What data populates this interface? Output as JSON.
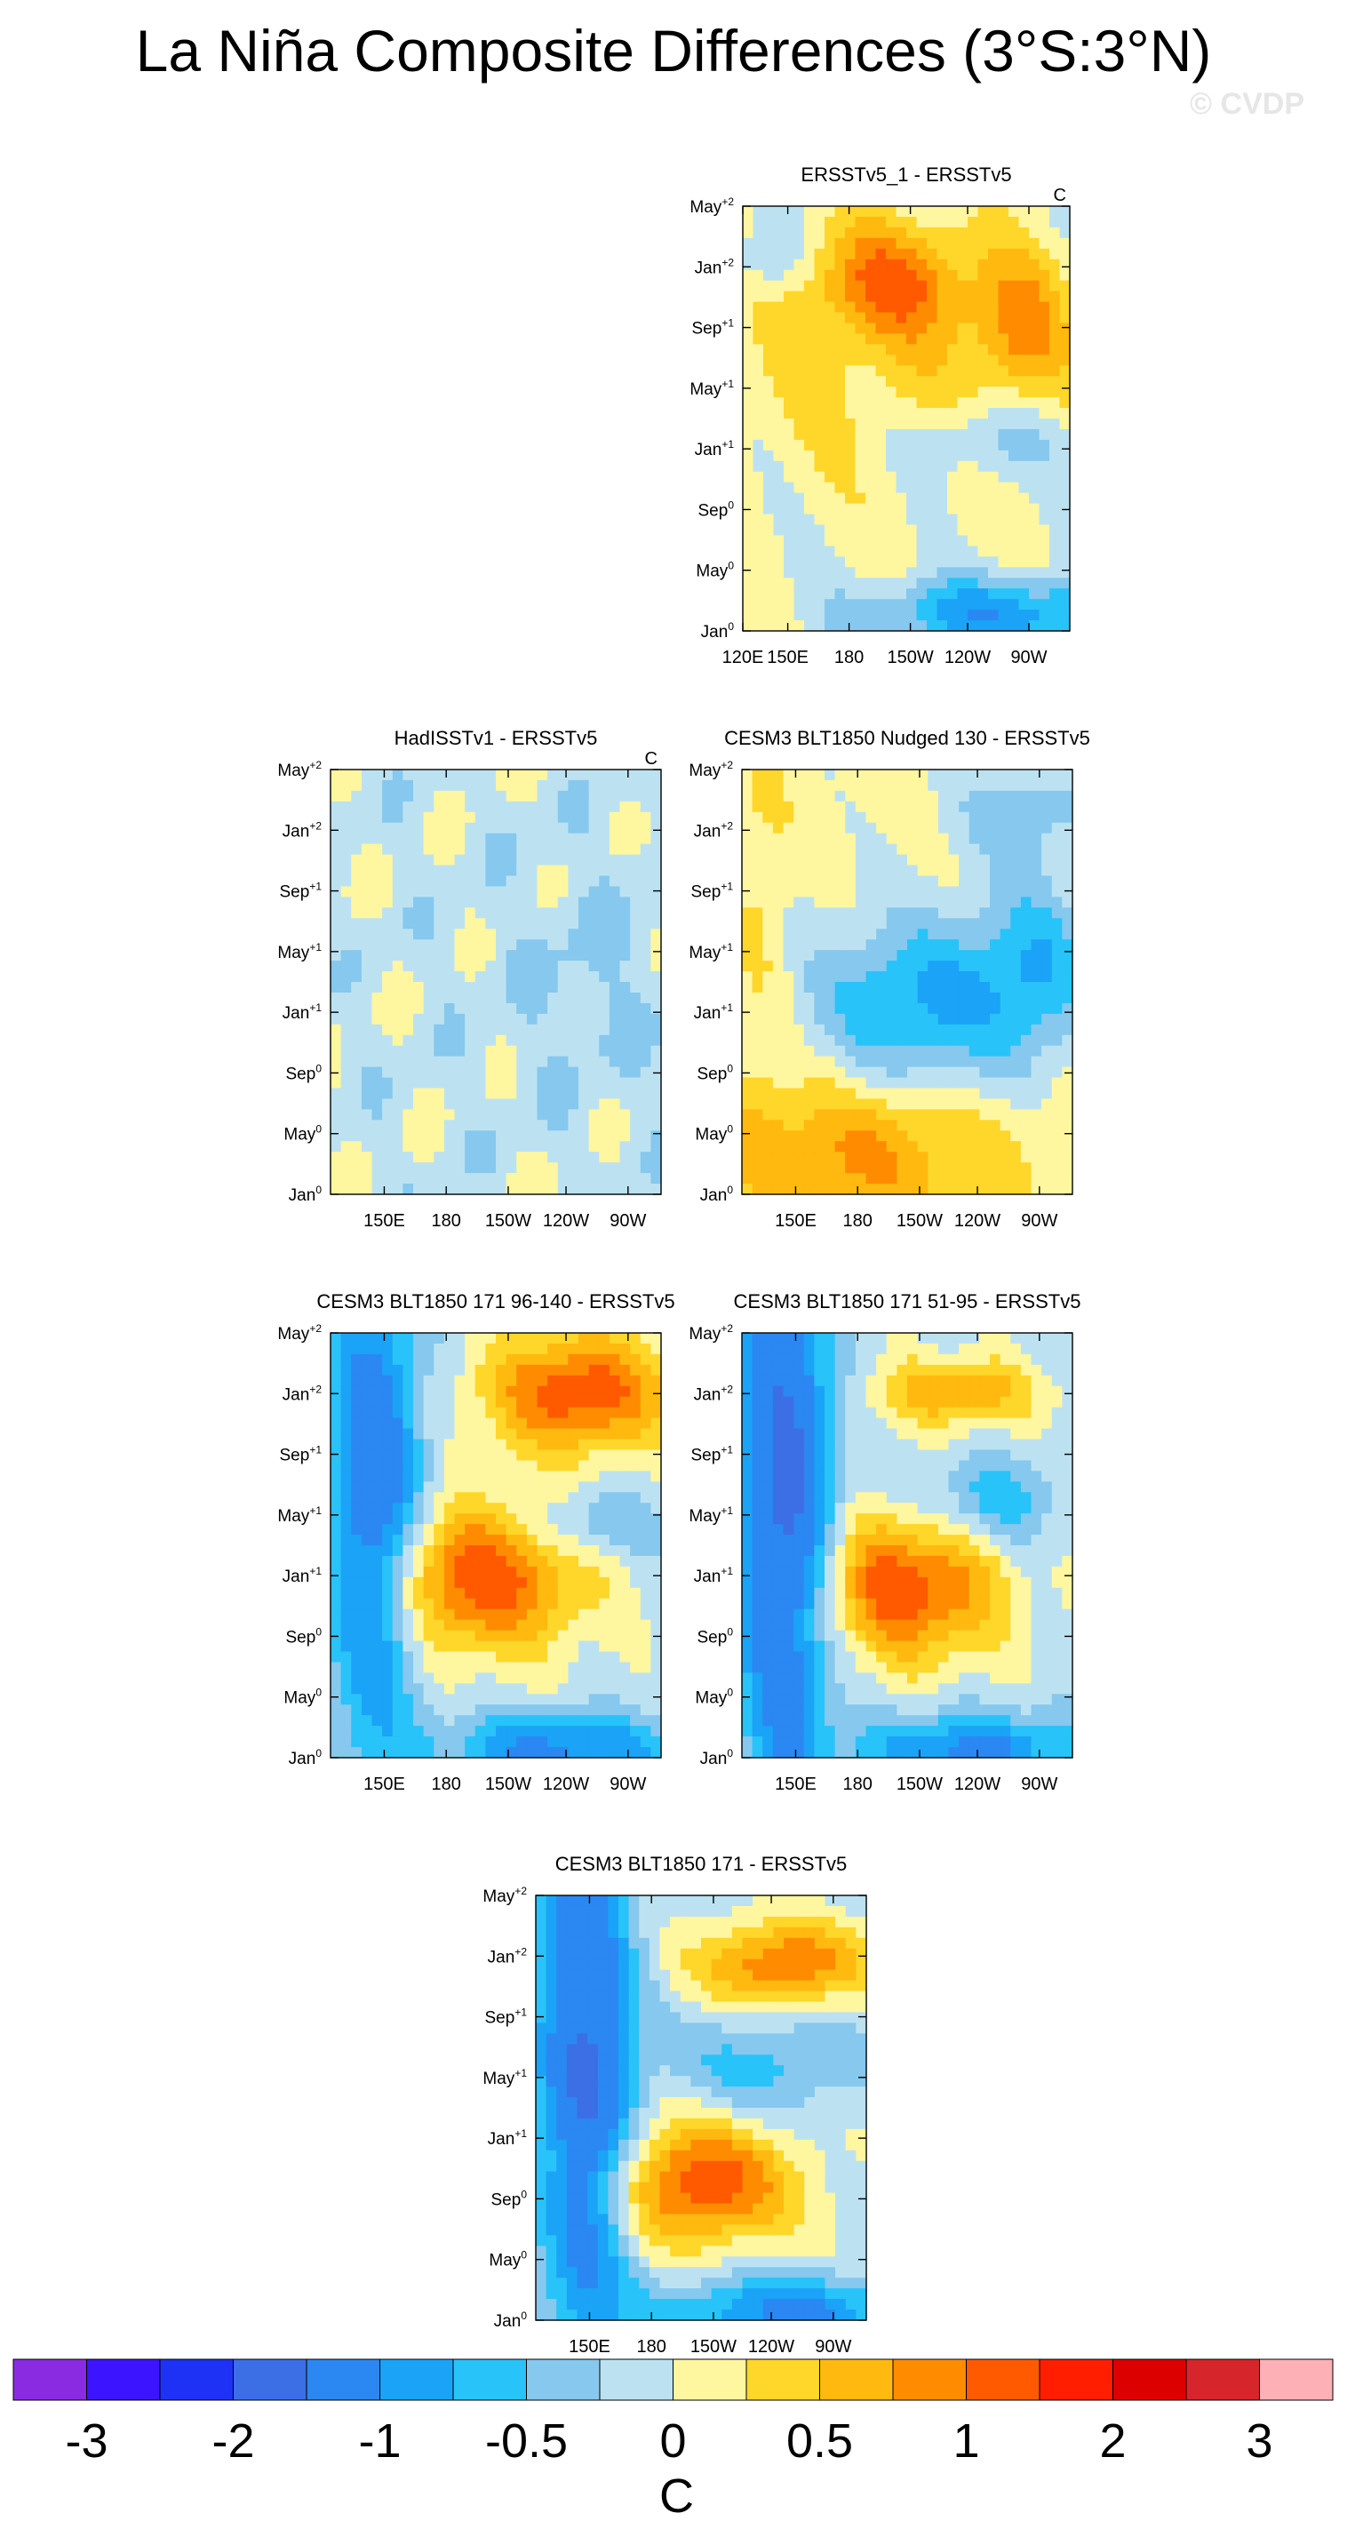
{
  "title": "La Niña Composite Differences (3°S:3°N)",
  "watermark": "© CVDP",
  "units": "C",
  "y_ticks": [
    {
      "base": "Jan",
      "sup": "0"
    },
    {
      "base": "May",
      "sup": "0"
    },
    {
      "base": "Sep",
      "sup": "0"
    },
    {
      "base": "Jan",
      "sup": "+1"
    },
    {
      "base": "May",
      "sup": "+1"
    },
    {
      "base": "Sep",
      "sup": "+1"
    },
    {
      "base": "Jan",
      "sup": "+2"
    },
    {
      "base": "May",
      "sup": "+2"
    }
  ],
  "x_ticks_full": [
    "120E",
    "150E",
    "180",
    "150W",
    "120W",
    "90W"
  ],
  "x_ticks_short": [
    "150E",
    "180",
    "150W",
    "120W",
    "90W"
  ],
  "colorbar": {
    "colors": [
      "#8a2be2",
      "#3c14ff",
      "#1e32f5",
      "#3c6ee6",
      "#2b87f2",
      "#1aa3f7",
      "#28c3f8",
      "#86c8ee",
      "#bce2f2",
      "#fff6a0",
      "#ffd62a",
      "#ffb90f",
      "#ff8c00",
      "#ff5a00",
      "#ff1e00",
      "#dc0000",
      "#d7262b",
      "#fdb1b6"
    ],
    "labels": [
      "-3",
      "-2",
      "-1",
      "-0.5",
      "0",
      "0.5",
      "1",
      "2",
      "3"
    ],
    "label_boundaries": [
      1,
      3,
      5,
      7,
      9,
      11,
      13,
      15,
      17
    ]
  },
  "chart_data": [
    {
      "type": "heatmap",
      "title": "ERSSTv5_1 - ERSSTv5",
      "units_label": "C",
      "x_axis": "full",
      "xlim": [
        "120E",
        "80W"
      ],
      "ylim": [
        "Jan0",
        "May+2"
      ]
    },
    {
      "type": "heatmap",
      "title": "HadISSTv1 - ERSSTv5",
      "units_label": "C",
      "x_axis": "short",
      "xlim": [
        "120E",
        "80W"
      ],
      "ylim": [
        "Jan0",
        "May+2"
      ]
    },
    {
      "type": "heatmap",
      "title": "CESM3 BLT1850 Nudged 130 - ERSSTv5",
      "units_label": "",
      "x_axis": "short",
      "xlim": [
        "120E",
        "80W"
      ],
      "ylim": [
        "Jan0",
        "May+2"
      ]
    },
    {
      "type": "heatmap",
      "title": "CESM3 BLT1850 171 96-140 - ERSSTv5",
      "units_label": "",
      "x_axis": "short",
      "xlim": [
        "120E",
        "80W"
      ],
      "ylim": [
        "Jan0",
        "May+2"
      ]
    },
    {
      "type": "heatmap",
      "title": "CESM3 BLT1850 171 51-95 - ERSSTv5",
      "units_label": "",
      "x_axis": "short",
      "xlim": [
        "120E",
        "80W"
      ],
      "ylim": [
        "Jan0",
        "May+2"
      ]
    },
    {
      "type": "heatmap",
      "title": "CESM3 BLT1850 171 - ERSSTv5",
      "units_label": "",
      "x_axis": "short",
      "xlim": [
        "120E",
        "80W"
      ],
      "ylim": [
        "Jan0",
        "May+2"
      ]
    }
  ]
}
